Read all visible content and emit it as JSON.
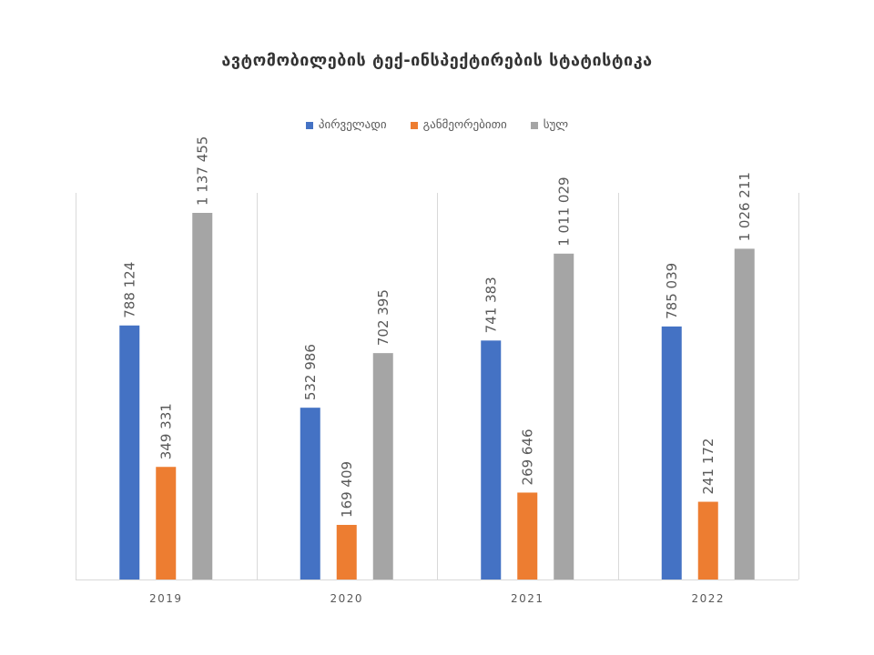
{
  "chart_data": {
    "type": "bar",
    "title": "ავტომობილების ტექ-ინსპექტირების სტატისტიკა",
    "categories": [
      "2019",
      "2020",
      "2021",
      "2022"
    ],
    "series": [
      {
        "name": "პირველადი",
        "color": "#4472c4",
        "values": [
          788124,
          532986,
          741383,
          785039
        ],
        "labels": [
          "788 124",
          "532 986",
          "741 383",
          "785 039"
        ]
      },
      {
        "name": "განმეორებითი",
        "color": "#ed7d31",
        "values": [
          349331,
          169409,
          269646,
          241172
        ],
        "labels": [
          "349 331",
          "169 409",
          "269 646",
          "241 172"
        ]
      },
      {
        "name": "სულ",
        "color": "#a5a5a5",
        "values": [
          1137455,
          702395,
          1011029,
          1026211
        ],
        "labels": [
          "1 137 455",
          "702 395",
          "1 011 029",
          "1 026 211"
        ]
      }
    ],
    "xlabel": "",
    "ylabel": "",
    "ylim": [
      0,
      1200000
    ],
    "legend_position": "top",
    "grid": "vertical separators between categories"
  }
}
